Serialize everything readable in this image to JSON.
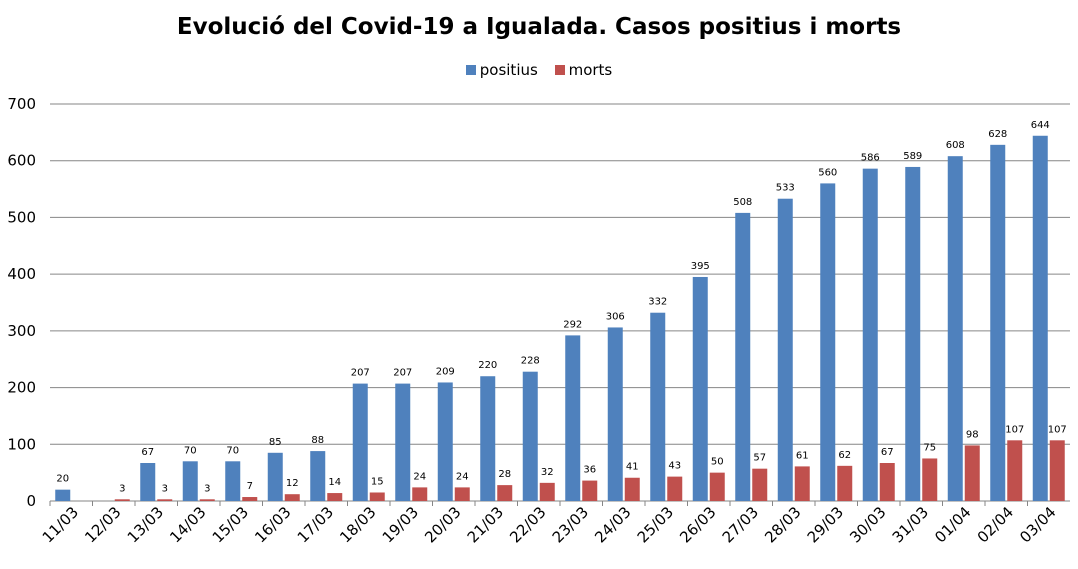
{
  "chart_data": {
    "type": "bar",
    "title": "Evolució del Covid-19 a Igualada. Casos positius i morts",
    "xlabel": "",
    "ylabel": "",
    "ylim": [
      0,
      700
    ],
    "yticks": [
      "0",
      "100",
      "200",
      "300",
      "400",
      "500",
      "600",
      "700"
    ],
    "grid": true,
    "legend_position": "top",
    "categories": [
      "11/03",
      "12/03",
      "13/03",
      "14/03",
      "15/03",
      "16/03",
      "17/03",
      "18/03",
      "19/03",
      "20/03",
      "21/03",
      "22/03",
      "23/03",
      "24/03",
      "25/03",
      "26/03",
      "27/03",
      "28/03",
      "29/03",
      "30/03",
      "31/03",
      "01/04",
      "02/04",
      "03/04"
    ],
    "series": [
      {
        "name": "positius",
        "color": "#4F81BD",
        "values": [
          20,
          null,
          67,
          70,
          70,
          85,
          88,
          207,
          207,
          209,
          220,
          228,
          292,
          306,
          332,
          395,
          508,
          533,
          560,
          586,
          589,
          608,
          628,
          644
        ]
      },
      {
        "name": "morts",
        "color": "#C0504D",
        "values": [
          null,
          3,
          3,
          3,
          7,
          12,
          14,
          15,
          24,
          24,
          28,
          32,
          36,
          41,
          43,
          50,
          57,
          61,
          62,
          67,
          75,
          98,
          107,
          107
        ]
      }
    ]
  }
}
